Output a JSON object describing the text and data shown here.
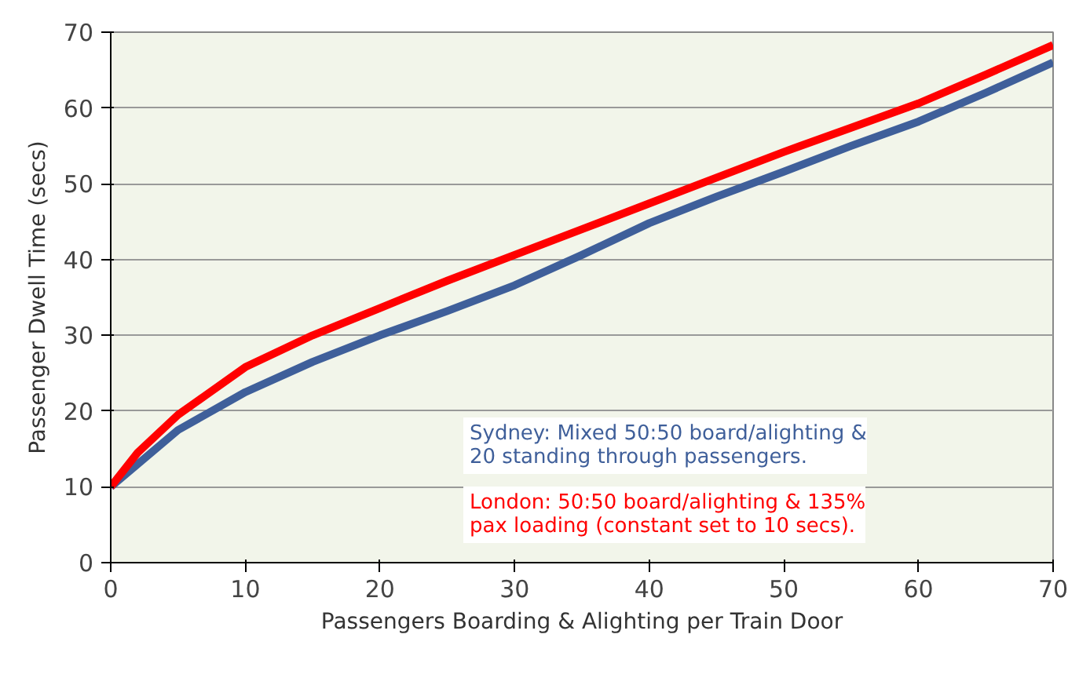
{
  "chart_data": {
    "type": "line",
    "xlabel": "Passengers Boarding & Alighting per Train Door",
    "ylabel": "Passenger Dwell Time (secs)",
    "x": [
      0,
      2,
      5,
      10,
      15,
      20,
      25,
      30,
      35,
      40,
      45,
      50,
      55,
      60,
      65,
      70
    ],
    "series": [
      {
        "name": "Sydney: Mixed 50:50 board/alighting & 20 standing through passengers.",
        "color": "#3f5f9a",
        "values": [
          10,
          13,
          17.5,
          22.5,
          26.5,
          30,
          33.2,
          36.6,
          40.6,
          44.8,
          48.3,
          51.6,
          55,
          58.2,
          62,
          66
        ]
      },
      {
        "name": "London: 50:50 board/alighting & 135% pax loading (constant set to 10 secs).",
        "color": "#ff0000",
        "values": [
          10,
          14.5,
          19.5,
          25.8,
          30,
          33.6,
          37.2,
          40.6,
          44,
          47.4,
          50.8,
          54.2,
          57.4,
          60.6,
          64.4,
          68.3
        ]
      }
    ],
    "xlim": [
      0,
      70
    ],
    "ylim": [
      0,
      70
    ],
    "xticks": [
      0,
      10,
      20,
      30,
      40,
      50,
      60,
      70
    ],
    "yticks": [
      0,
      10,
      20,
      30,
      40,
      50,
      60,
      70
    ],
    "grid": "y",
    "legend": "bottom right",
    "marker": "none",
    "line_style": "solid"
  }
}
